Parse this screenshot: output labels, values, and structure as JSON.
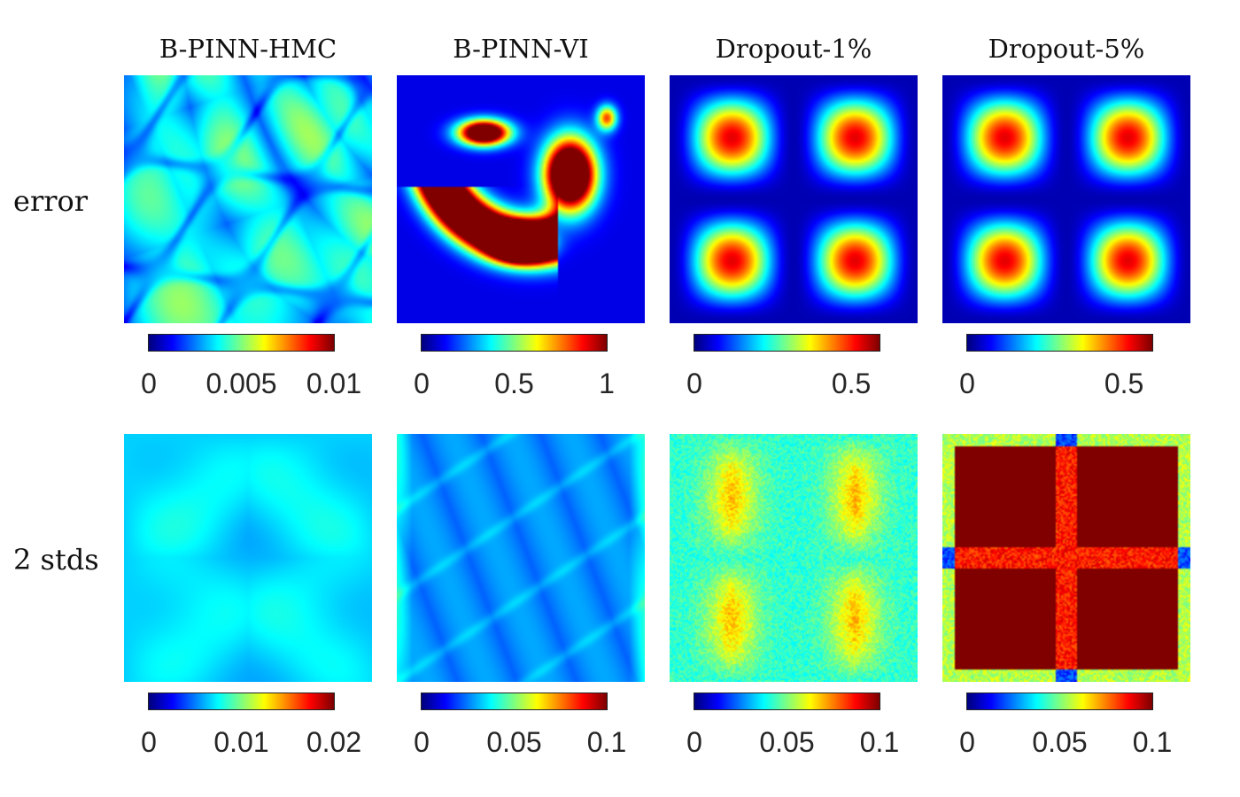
{
  "chart_data": {
    "type": "heatmap",
    "colormap": "jet",
    "columns": [
      "B-PINN-HMC",
      "B-PINN-VI",
      "Dropout-1%",
      "Dropout-5%"
    ],
    "rows": [
      "error",
      "2 stds"
    ],
    "panels": [
      {
        "row": "error",
        "column": "B-PINN-HMC",
        "clim": [
          0,
          0.01
        ],
        "ticks": [
          "0",
          "0.005",
          "0.01"
        ],
        "tick_values": [
          0,
          0.005,
          0.01
        ]
      },
      {
        "row": "error",
        "column": "B-PINN-VI",
        "clim": [
          0,
          1
        ],
        "ticks": [
          "0",
          "0.5",
          "1"
        ],
        "tick_values": [
          0,
          0.5,
          1
        ]
      },
      {
        "row": "error",
        "column": "Dropout-1%",
        "clim": [
          0,
          0.59
        ],
        "ticks": [
          "0",
          "0.5"
        ],
        "tick_values": [
          0,
          0.5
        ]
      },
      {
        "row": "error",
        "column": "Dropout-5%",
        "clim": [
          0,
          0.59
        ],
        "ticks": [
          "0",
          "0.5"
        ],
        "tick_values": [
          0,
          0.5
        ]
      },
      {
        "row": "2 stds",
        "column": "B-PINN-HMC",
        "clim": [
          0,
          0.02
        ],
        "ticks": [
          "0",
          "0.01",
          "0.02"
        ],
        "tick_values": [
          0,
          0.01,
          0.02
        ]
      },
      {
        "row": "2 stds",
        "column": "B-PINN-VI",
        "clim": [
          0,
          0.1
        ],
        "ticks": [
          "0",
          "0.05",
          "0.1"
        ],
        "tick_values": [
          0,
          0.05,
          0.1
        ]
      },
      {
        "row": "2 stds",
        "column": "Dropout-1%",
        "clim": [
          0,
          0.1
        ],
        "ticks": [
          "0",
          "0.05",
          "0.1"
        ],
        "tick_values": [
          0,
          0.05,
          0.1
        ]
      },
      {
        "row": "2 stds",
        "column": "Dropout-5%",
        "clim": [
          0,
          0.1
        ],
        "ticks": [
          "0",
          "0.05",
          "0.1"
        ],
        "tick_values": [
          0,
          0.05,
          0.1
        ]
      }
    ]
  }
}
